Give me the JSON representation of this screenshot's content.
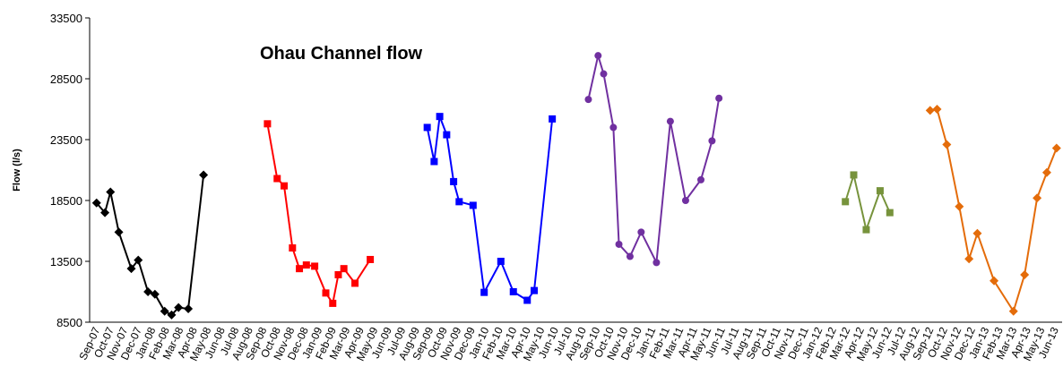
{
  "chart_data": {
    "type": "line",
    "title": "Ohau Channel flow",
    "y_label": "Flow (l/s)",
    "categories": [
      "Sep-07",
      "Oct-07",
      "Nov-07",
      "Dec-07",
      "Jan-08",
      "Feb-08",
      "Mar-08",
      "Apr-08",
      "May-08",
      "Jun-08",
      "Jul-08",
      "Aug-08",
      "Sep-08",
      "Oct-08",
      "Nov-08",
      "Dec-08",
      "Jan-09",
      "Feb-09",
      "Mar-09",
      "Apr-09",
      "May-09",
      "Jun-09",
      "Jul-09",
      "Aug-09",
      "Sep-09",
      "Oct-09",
      "Nov-09",
      "Dec-09",
      "Jan-10",
      "Feb-10",
      "Mar-10",
      "Apr-10",
      "May-10",
      "Jun-10",
      "Jul-10",
      "Aug-10",
      "Sep-10",
      "Oct-10",
      "Nov-10",
      "Dec-10",
      "Jan-11",
      "Feb-11",
      "Mar-11",
      "Apr-11",
      "May-11",
      "Jun-11",
      "Jul-11",
      "Aug-11",
      "Sep-11",
      "Oct-11",
      "Nov-11",
      "Dec-11",
      "Jan-12",
      "Feb-12",
      "Mar-12",
      "Apr-12",
      "May-12",
      "Jun-12",
      "Jul-12",
      "Aug-12",
      "Sep-12",
      "Oct-12",
      "Nov-12",
      "Dec-12",
      "Jan-13",
      "Feb-13",
      "Mar-13",
      "Apr-13",
      "May-13",
      "Jun-13"
    ],
    "xlim": [
      -0.5,
      69.5
    ],
    "ylim": [
      8500,
      33500
    ],
    "yticks": [
      8500,
      13500,
      18500,
      23500,
      28500,
      33500
    ],
    "grid": false,
    "series": [
      {
        "color": "#000000",
        "marker": "diamond",
        "x": [
          0,
          0.6,
          1.0,
          1.6,
          2.5,
          3.0,
          3.7,
          4.2,
          4.9,
          5.4,
          5.9,
          6.6,
          7.7
        ],
        "values": [
          18300,
          17500,
          19200,
          15900,
          12900,
          13600,
          11000,
          10800,
          9400,
          9100,
          9700,
          9600,
          20600
        ]
      },
      {
        "color": "#ff0000",
        "marker": "square",
        "x": [
          12.3,
          13.0,
          13.5,
          14.1,
          14.6,
          15.1,
          15.7,
          16.5,
          17.0,
          17.4,
          17.8,
          18.6,
          19.7
        ],
        "values": [
          24800,
          20300,
          19700,
          14600,
          12900,
          13200,
          13100,
          10900,
          10050,
          12400,
          12900,
          11700,
          13650
        ]
      },
      {
        "color": "#0000ff",
        "marker": "square",
        "x": [
          23.8,
          24.3,
          24.7,
          25.2,
          25.7,
          26.1,
          27.1,
          27.9,
          29.1,
          30.0,
          31.0,
          31.5,
          32.8
        ],
        "values": [
          24500,
          21700,
          25400,
          23900,
          20050,
          18400,
          18100,
          10950,
          13500,
          11000,
          10300,
          11100,
          25200
        ]
      },
      {
        "color": "#7030a0",
        "marker": "circle",
        "x": [
          35.4,
          36.1,
          36.5,
          37.2,
          37.6,
          38.4,
          39.2,
          40.3,
          41.3,
          42.4,
          43.5,
          44.3,
          44.8
        ],
        "values": [
          26800,
          30400,
          28900,
          24500,
          14900,
          13900,
          15900,
          13400,
          25000,
          18500,
          20200,
          23400,
          26900
        ]
      },
      {
        "color": "#77933c",
        "marker": "square",
        "x": [
          53.9,
          54.5,
          55.4,
          56.4,
          57.1
        ],
        "values": [
          18400,
          20600,
          16100,
          19300,
          17500
        ]
      },
      {
        "color": "#e46c0a",
        "marker": "diamond",
        "x": [
          60.0,
          60.5,
          61.2,
          62.1,
          62.8,
          63.4,
          64.6,
          66.0,
          66.8,
          67.7,
          68.4,
          69.1
        ],
        "values": [
          25900,
          26000,
          23100,
          18000,
          13700,
          15800,
          11900,
          9400,
          12400,
          18700,
          20800,
          22800
        ]
      }
    ]
  }
}
